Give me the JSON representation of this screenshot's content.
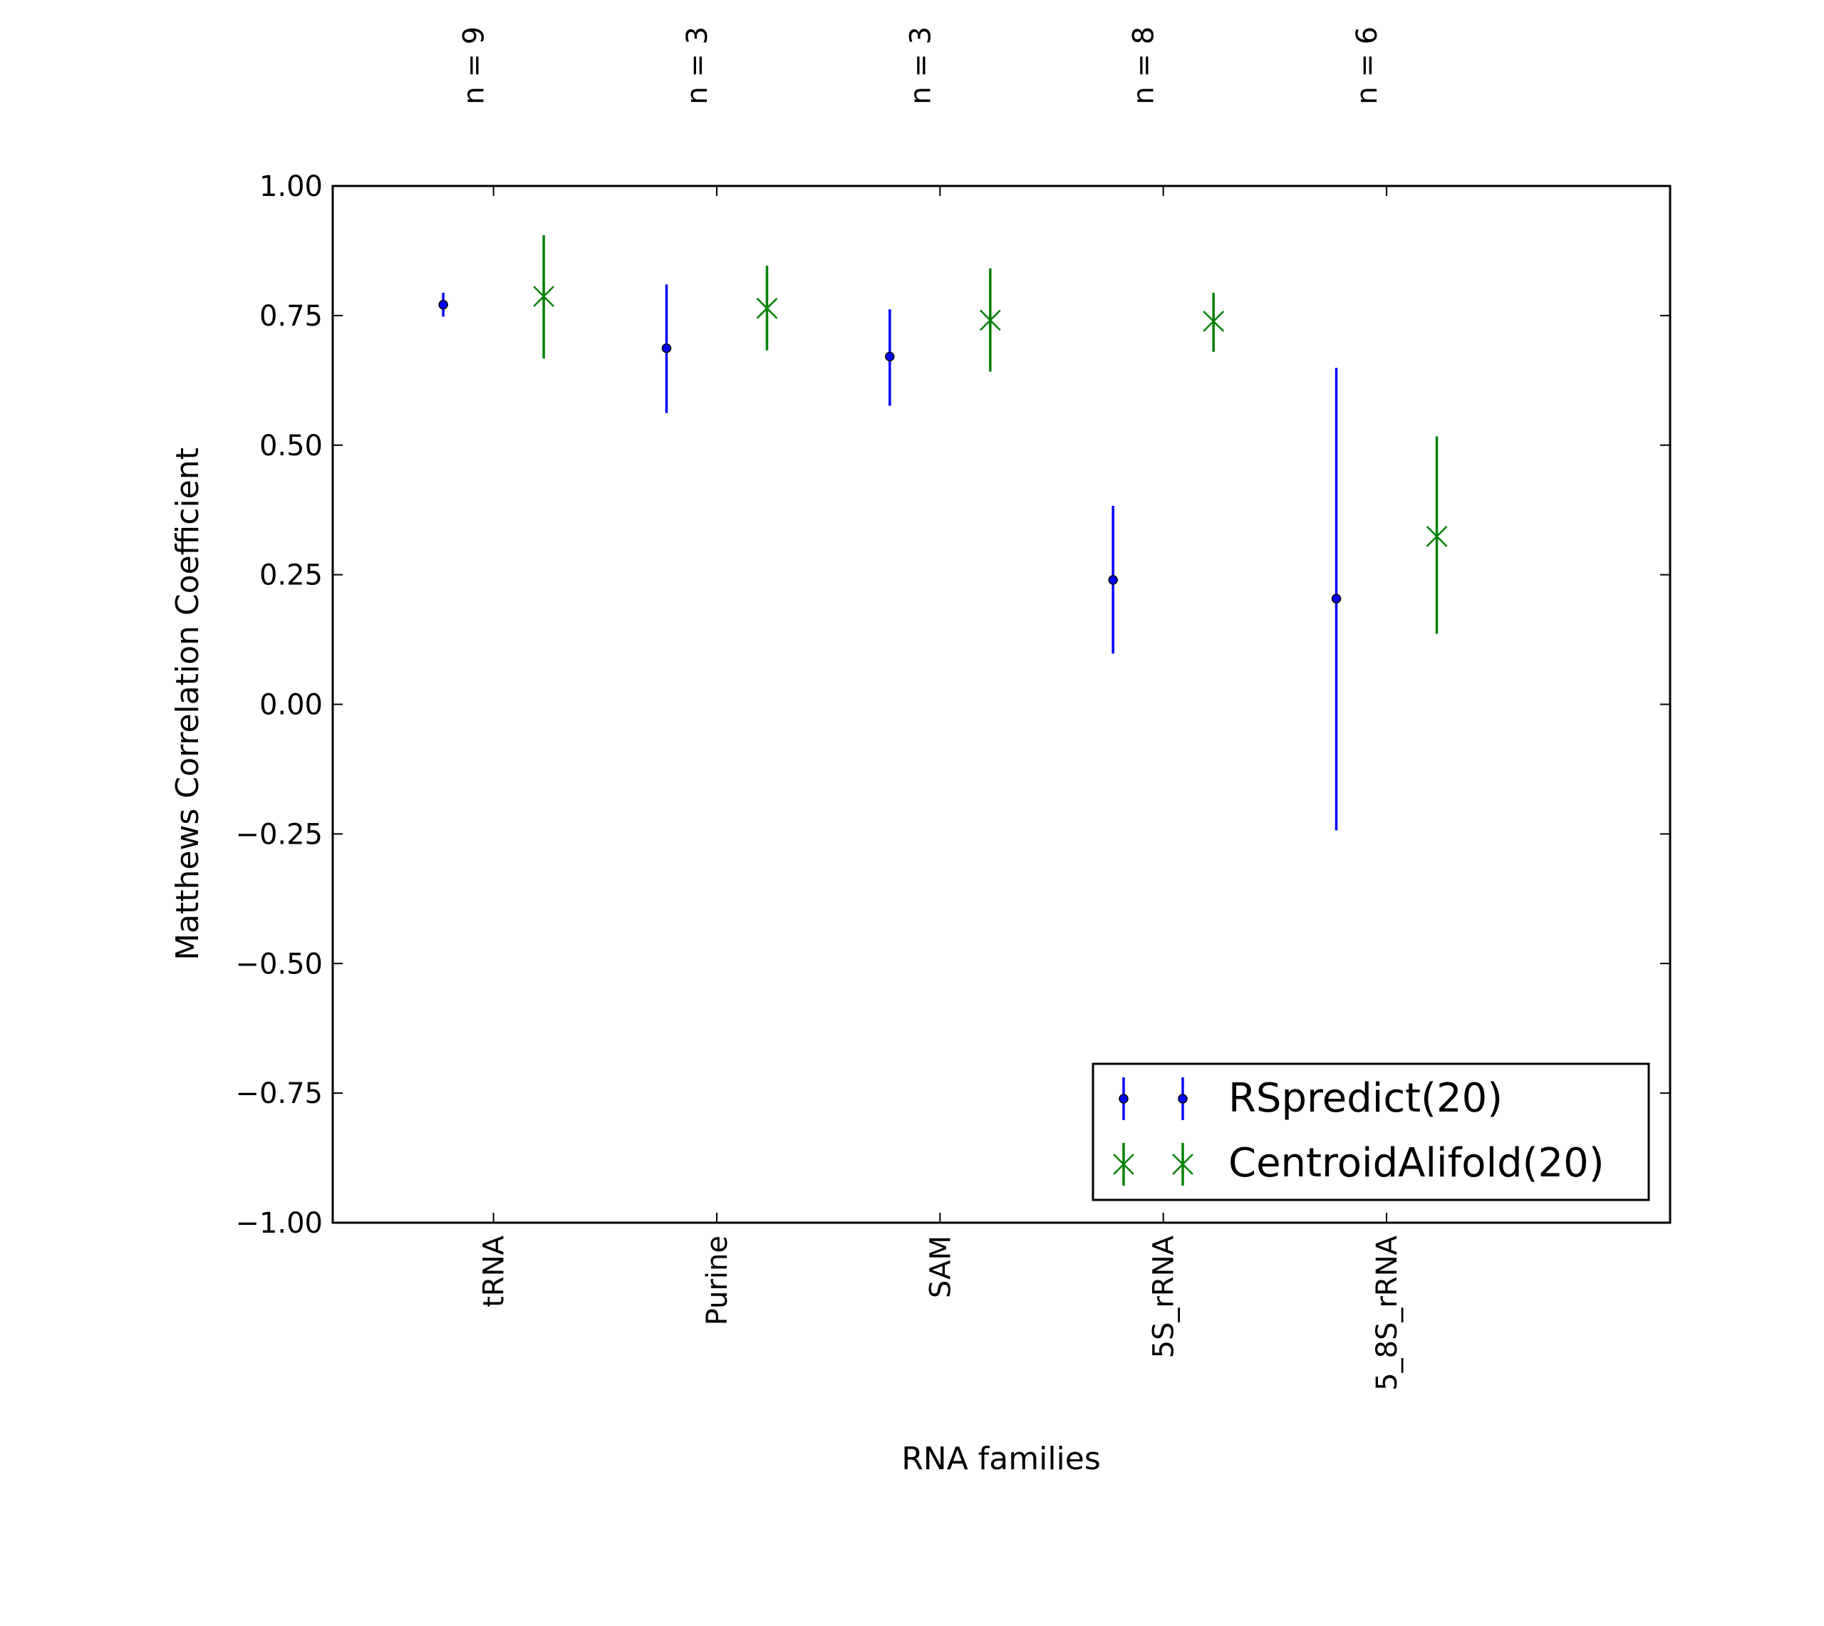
{
  "chart_data": {
    "type": "errorbar",
    "title": "",
    "xlabel": "RNA families",
    "ylabel": "Matthews Correlation Coefficient",
    "categories": [
      "tRNA",
      "Purine",
      "SAM",
      "5S_rRNA",
      "5_8S_rRNA"
    ],
    "top_labels": [
      "n = 9",
      "n = 3",
      "n = 3",
      "n = 8",
      "n = 6"
    ],
    "ylim": [
      -1.0,
      1.0
    ],
    "yticks": [
      "−1.00",
      "−0.75",
      "−0.50",
      "−0.25",
      "0.00",
      "0.25",
      "0.50",
      "0.75",
      "1.00"
    ],
    "ytick_values": [
      -1.0,
      -0.75,
      -0.5,
      -0.25,
      0.0,
      0.25,
      0.5,
      0.75,
      1.0
    ],
    "grid": false,
    "legend_position": "lower-right",
    "series": [
      {
        "name": "RSpredict(20)",
        "color": "#0000ff",
        "marker": "dot",
        "values": [
          0.771,
          0.687,
          0.671,
          0.24,
          0.204
        ],
        "upper": [
          0.794,
          0.81,
          0.762,
          0.383,
          0.649
        ],
        "lower": [
          0.748,
          0.562,
          0.576,
          0.098,
          -0.243
        ]
      },
      {
        "name": "CentroidAlifold(20)",
        "color": "#008000",
        "marker": "x",
        "values": [
          0.787,
          0.764,
          0.741,
          0.739,
          0.324
        ],
        "upper": [
          0.905,
          0.846,
          0.841,
          0.794,
          0.517
        ],
        "lower": [
          0.667,
          0.683,
          0.642,
          0.68,
          0.136
        ]
      }
    ]
  }
}
